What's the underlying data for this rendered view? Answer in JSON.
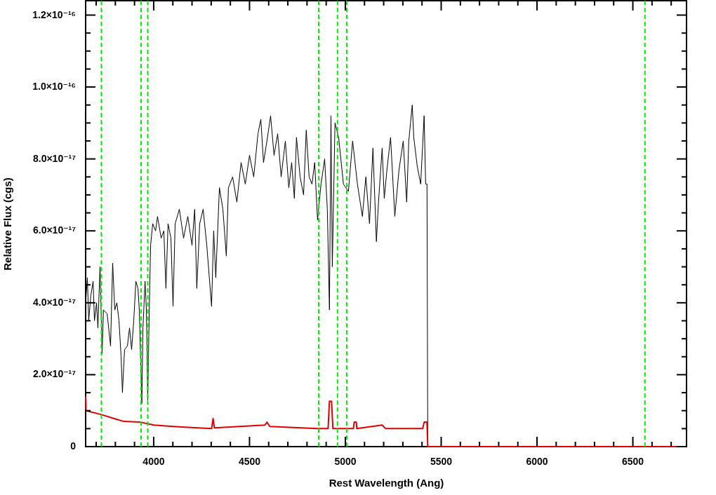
{
  "chart_data": {
    "type": "line",
    "xlabel": "Rest Wavelength (Ang)",
    "ylabel": "Relative Flux (cgs)",
    "xlim": [
      3645,
      6780
    ],
    "ylim": [
      0,
      1.24e-16
    ],
    "xticks": [
      {
        "value": 3700,
        "label": null
      },
      {
        "value": 3800,
        "label": null
      },
      {
        "value": 3900,
        "label": null
      },
      4000,
      {
        "value": 4100,
        "label": null
      },
      {
        "value": 4200,
        "label": null
      },
      {
        "value": 4300,
        "label": null
      },
      {
        "value": 4400,
        "label": null
      },
      4500,
      {
        "value": 4600,
        "label": null
      },
      {
        "value": 4700,
        "label": null
      },
      {
        "value": 4800,
        "label": null
      },
      {
        "value": 4900,
        "label": null
      },
      5000,
      {
        "value": 5100,
        "label": null
      },
      {
        "value": 5200,
        "label": null
      },
      {
        "value": 5300,
        "label": null
      },
      {
        "value": 5400,
        "label": null
      },
      5500,
      {
        "value": 5600,
        "label": null
      },
      {
        "value": 5700,
        "label": null
      },
      {
        "value": 5800,
        "label": null
      },
      {
        "value": 5900,
        "label": null
      },
      6000,
      {
        "value": 6100,
        "label": null
      },
      {
        "value": 6200,
        "label": null
      },
      {
        "value": 6300,
        "label": null
      },
      {
        "value": 6400,
        "label": null
      },
      6500,
      {
        "value": 6600,
        "label": null
      },
      {
        "value": 6700,
        "label": null
      }
    ],
    "yticks": [
      0,
      {
        "value": 5e-18,
        "label": null
      },
      {
        "value": 1e-17,
        "label": null
      },
      {
        "value": 1.5e-17,
        "label": null
      },
      {
        "value": 2e-17,
        "label": "2.0×10⁻¹⁷"
      },
      {
        "value": 2.5e-17,
        "label": null
      },
      {
        "value": 3e-17,
        "label": null
      },
      {
        "value": 3.5e-17,
        "label": null
      },
      {
        "value": 4e-17,
        "label": "4.0×10⁻¹⁷"
      },
      {
        "value": 4.5e-17,
        "label": null
      },
      {
        "value": 5e-17,
        "label": null
      },
      {
        "value": 5.5e-17,
        "label": null
      },
      {
        "value": 6e-17,
        "label": "6.0×10⁻¹⁷"
      },
      {
        "value": 6.5e-17,
        "label": null
      },
      {
        "value": 7e-17,
        "label": null
      },
      {
        "value": 7.5e-17,
        "label": null
      },
      {
        "value": 8e-17,
        "label": "8.0×10⁻¹⁷"
      },
      {
        "value": 8.5e-17,
        "label": null
      },
      {
        "value": 9e-17,
        "label": null
      },
      {
        "value": 9.5e-17,
        "label": null
      },
      {
        "value": 1e-16,
        "label": "1.0×10⁻¹⁶"
      },
      {
        "value": 1.05e-16,
        "label": null
      },
      {
        "value": 1.1e-16,
        "label": null
      },
      {
        "value": 1.15e-16,
        "label": null
      },
      {
        "value": 1.2e-16,
        "label": "1.2×10⁻¹⁶"
      }
    ],
    "grid": false,
    "series": [
      {
        "color": "#000000",
        "x": [
          3645,
          3654,
          3661,
          3672,
          3684,
          3691,
          3702,
          3709,
          3720,
          3731,
          3738,
          3757,
          3775,
          3786,
          3797,
          3808,
          3819,
          3830,
          3837,
          3848,
          3863,
          3874,
          3885,
          3896,
          3907,
          3918,
          3925,
          3938,
          3944,
          3955,
          3962,
          3969,
          3977,
          3984,
          3995,
          4010,
          4020,
          4039,
          4053,
          4064,
          4075,
          4090,
          4101,
          4112,
          4134,
          4156,
          4178,
          4200,
          4214,
          4225,
          4240,
          4258,
          4277,
          4302,
          4313,
          4324,
          4343,
          4361,
          4379,
          4390,
          4412,
          4434,
          4456,
          4478,
          4500,
          4522,
          4544,
          4559,
          4573,
          4591,
          4610,
          4628,
          4647,
          4665,
          4687,
          4705,
          4720,
          4734,
          4745,
          4764,
          4782,
          4796,
          4811,
          4826,
          4840,
          4855,
          4873,
          4892,
          4906,
          4917,
          4925,
          4932,
          4946,
          4965,
          4990,
          5016,
          5038,
          5063,
          5089,
          5107,
          5126,
          5144,
          5162,
          5173,
          5192,
          5203,
          5217,
          5236,
          5258,
          5280,
          5302,
          5320,
          5331,
          5349,
          5357,
          5375,
          5393,
          5411,
          5419,
          5426,
          5430
        ],
        "values": [
          4e-17,
          4.7e-17,
          3.5e-17,
          4.2e-17,
          4.6e-17,
          3.5e-17,
          4e-17,
          3.3e-17,
          5e-17,
          2.6e-17,
          3.8e-17,
          3.7e-17,
          2.8e-17,
          5.1e-17,
          3.8e-17,
          4e-17,
          3.5e-17,
          2.5e-17,
          1.5e-17,
          2.7e-17,
          2.8e-17,
          3.3e-17,
          2.7e-17,
          3.5e-17,
          4.6e-17,
          4.4e-17,
          3.8e-17,
          1.2e-17,
          3.3e-17,
          4.6e-17,
          3.8e-17,
          1.3e-17,
          3.8e-17,
          5.6e-17,
          6.2e-17,
          6e-17,
          6.4e-17,
          5.8e-17,
          6e-17,
          4.4e-17,
          6.2e-17,
          5.8e-17,
          3.9e-17,
          6.2e-17,
          6.6e-17,
          5.8e-17,
          6.4e-17,
          5.6e-17,
          6.6e-17,
          4.4e-17,
          6.2e-17,
          6.6e-17,
          5.6e-17,
          3.9e-17,
          6e-17,
          4.7e-17,
          7.2e-17,
          6.6e-17,
          5.3e-17,
          7.2e-17,
          7.5e-17,
          6.8e-17,
          7.9e-17,
          7.3e-17,
          8.1e-17,
          7.5e-17,
          8.7e-17,
          9.1e-17,
          7.9e-17,
          8.5e-17,
          9.2e-17,
          8.1e-17,
          8.7e-17,
          7.5e-17,
          8.5e-17,
          7.2e-17,
          7.9e-17,
          6.9e-17,
          8.6e-17,
          7.5e-17,
          7e-17,
          8.8e-17,
          7.5e-17,
          7.3e-17,
          7.9e-17,
          6.3e-17,
          7.3e-17,
          8e-17,
          6.6e-17,
          3.8e-17,
          9.2e-17,
          5e-17,
          9e-17,
          8.6e-17,
          7.3e-17,
          7.1e-17,
          8.5e-17,
          7.3e-17,
          6.4e-17,
          7.5e-17,
          6.2e-17,
          8.3e-17,
          5.7e-17,
          6.8e-17,
          8.3e-17,
          6.9e-17,
          7.7e-17,
          8.6e-17,
          6.4e-17,
          7.7e-17,
          8.5e-17,
          6.8e-17,
          8.5e-17,
          9.5e-17,
          8.6e-17,
          7.8e-17,
          7.3e-17,
          9.2e-17,
          7.3e-17,
          7.3e-17,
          0
        ]
      },
      {
        "color": "#e00000",
        "x": [
          3645,
          3647,
          3654,
          3728,
          3794,
          3845,
          3929,
          4002,
          4101,
          4302,
          4310,
          4317,
          4580,
          4591,
          4606,
          4855,
          4910,
          4917,
          4928,
          4935,
          5042,
          5046,
          5057,
          5060,
          5192,
          5210,
          5404,
          5411,
          5426,
          5430,
          6780
        ],
        "values": [
          1.4e-17,
          1e-17,
          9.9e-18,
          8.9e-18,
          7.8e-18,
          7e-18,
          6.8e-18,
          6e-18,
          5.6e-18,
          5e-18,
          7.8e-18,
          5.2e-18,
          6e-18,
          6.8e-18,
          5.6e-18,
          5e-18,
          5e-18,
          1.26e-17,
          1.26e-17,
          5e-18,
          5e-18,
          6.8e-18,
          6.8e-18,
          5e-18,
          6e-18,
          5e-18,
          5e-18,
          6.8e-18,
          6.8e-18,
          0,
          0
        ]
      }
    ],
    "ref_lines": [
      {
        "axis": "x",
        "value": 3727,
        "color": "#00ee00",
        "line_style": "dashed"
      },
      {
        "axis": "x",
        "value": 3934,
        "color": "#00ee00",
        "line_style": "dashed"
      },
      {
        "axis": "x",
        "value": 3969,
        "color": "#00ee00",
        "line_style": "dashed"
      },
      {
        "axis": "x",
        "value": 4861,
        "color": "#00ee00",
        "line_style": "dashed"
      },
      {
        "axis": "x",
        "value": 4959,
        "color": "#00ee00",
        "line_style": "dashed"
      },
      {
        "axis": "x",
        "value": 5007,
        "color": "#00ee00",
        "line_style": "dashed"
      },
      {
        "axis": "x",
        "value": 6563,
        "color": "#00ee00",
        "line_style": "dashed"
      }
    ]
  }
}
